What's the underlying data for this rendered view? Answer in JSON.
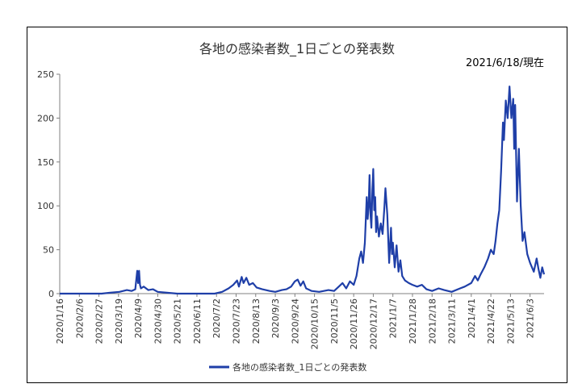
{
  "chart_data": {
    "type": "line",
    "title": "各地の感染者数_1日ごとの発表数",
    "subtitle": "2021/6/18/現在",
    "xlabel": "",
    "ylabel": "",
    "ylim": [
      0,
      250
    ],
    "y_ticks": [
      0,
      50,
      100,
      150,
      200,
      250
    ],
    "x_ticks": [
      "2020/1/16",
      "2020/2/6",
      "2020/2/27",
      "2020/3/19",
      "2020/4/9",
      "2020/4/30",
      "2020/5/21",
      "2020/6/11",
      "2020/7/2",
      "2020/7/23",
      "2020/8/13",
      "2020/9/3",
      "2020/9/24",
      "2020/10/15",
      "2020/11/5",
      "2020/11/26",
      "2020/12/17",
      "2021/1/7",
      "2021/1/28",
      "2021/2/18",
      "2021/3/11",
      "2021/4/1",
      "2021/4/22",
      "2021/5/13",
      "2021/6/3"
    ],
    "grid": false,
    "legend": "bottom",
    "colors": {
      "series": "#1F3FA8"
    },
    "series": [
      {
        "name": "各地の感染者数_1日ごとの発表数",
        "points": [
          [
            "2020/1/16",
            0
          ],
          [
            "2020/3/1",
            0
          ],
          [
            "2020/3/10",
            1
          ],
          [
            "2020/3/20",
            2
          ],
          [
            "2020/3/28",
            4
          ],
          [
            "2020/4/2",
            3
          ],
          [
            "2020/4/6",
            5
          ],
          [
            "2020/4/8",
            26
          ],
          [
            "2020/4/9",
            12
          ],
          [
            "2020/4/10",
            26
          ],
          [
            "2020/4/11",
            10
          ],
          [
            "2020/4/12",
            6
          ],
          [
            "2020/4/15",
            8
          ],
          [
            "2020/4/20",
            4
          ],
          [
            "2020/4/25",
            5
          ],
          [
            "2020/4/30",
            2
          ],
          [
            "2020/5/10",
            1
          ],
          [
            "2020/5/21",
            0
          ],
          [
            "2020/6/30",
            0
          ],
          [
            "2020/7/8",
            2
          ],
          [
            "2020/7/15",
            6
          ],
          [
            "2020/7/20",
            10
          ],
          [
            "2020/7/24",
            15
          ],
          [
            "2020/7/26",
            8
          ],
          [
            "2020/7/29",
            19
          ],
          [
            "2020/7/31",
            12
          ],
          [
            "2020/8/3",
            18
          ],
          [
            "2020/8/6",
            10
          ],
          [
            "2020/8/10",
            12
          ],
          [
            "2020/8/14",
            7
          ],
          [
            "2020/8/20",
            5
          ],
          [
            "2020/8/28",
            3
          ],
          [
            "2020/9/3",
            2
          ],
          [
            "2020/9/10",
            4
          ],
          [
            "2020/9/15",
            5
          ],
          [
            "2020/9/20",
            8
          ],
          [
            "2020/9/24",
            14
          ],
          [
            "2020/9/27",
            16
          ],
          [
            "2020/9/30",
            9
          ],
          [
            "2020/10/3",
            14
          ],
          [
            "2020/10/6",
            6
          ],
          [
            "2020/10/12",
            3
          ],
          [
            "2020/10/20",
            2
          ],
          [
            "2020/10/30",
            4
          ],
          [
            "2020/11/5",
            3
          ],
          [
            "2020/11/10",
            8
          ],
          [
            "2020/11/14",
            12
          ],
          [
            "2020/11/18",
            6
          ],
          [
            "2020/11/22",
            14
          ],
          [
            "2020/11/26",
            10
          ],
          [
            "2020/11/29",
            20
          ],
          [
            "2020/12/2",
            40
          ],
          [
            "2020/12/4",
            48
          ],
          [
            "2020/12/6",
            35
          ],
          [
            "2020/12/8",
            58
          ],
          [
            "2020/12/10",
            110
          ],
          [
            "2020/12/11",
            85
          ],
          [
            "2020/12/12",
            100
          ],
          [
            "2020/12/13",
            135
          ],
          [
            "2020/12/14",
            90
          ],
          [
            "2020/12/15",
            75
          ],
          [
            "2020/12/16",
            118
          ],
          [
            "2020/12/17",
            142
          ],
          [
            "2020/12/18",
            95
          ],
          [
            "2020/12/19",
            110
          ],
          [
            "2020/12/20",
            70
          ],
          [
            "2020/12/21",
            88
          ],
          [
            "2020/12/23",
            65
          ],
          [
            "2020/12/25",
            80
          ],
          [
            "2020/12/27",
            68
          ],
          [
            "2020/12/29",
            100
          ],
          [
            "2020/12/30",
            120
          ],
          [
            "2021/1/1",
            90
          ],
          [
            "2021/1/3",
            35
          ],
          [
            "2021/1/5",
            75
          ],
          [
            "2021/1/6",
            45
          ],
          [
            "2021/1/7",
            58
          ],
          [
            "2021/1/9",
            30
          ],
          [
            "2021/1/11",
            55
          ],
          [
            "2021/1/13",
            25
          ],
          [
            "2021/1/15",
            38
          ],
          [
            "2021/1/17",
            20
          ],
          [
            "2021/1/20",
            15
          ],
          [
            "2021/1/24",
            12
          ],
          [
            "2021/1/28",
            10
          ],
          [
            "2021/2/2",
            8
          ],
          [
            "2021/2/7",
            10
          ],
          [
            "2021/2/12",
            5
          ],
          [
            "2021/2/18",
            3
          ],
          [
            "2021/2/25",
            6
          ],
          [
            "2021/3/3",
            4
          ],
          [
            "2021/3/11",
            2
          ],
          [
            "2021/3/20",
            6
          ],
          [
            "2021/3/25",
            8
          ],
          [
            "2021/4/1",
            12
          ],
          [
            "2021/4/5",
            20
          ],
          [
            "2021/4/8",
            15
          ],
          [
            "2021/4/11",
            22
          ],
          [
            "2021/4/15",
            30
          ],
          [
            "2021/4/19",
            40
          ],
          [
            "2021/4/22",
            50
          ],
          [
            "2021/4/25",
            45
          ],
          [
            "2021/4/27",
            60
          ],
          [
            "2021/4/29",
            80
          ],
          [
            "2021/5/1",
            95
          ],
          [
            "2021/5/3",
            140
          ],
          [
            "2021/5/5",
            195
          ],
          [
            "2021/5/6",
            175
          ],
          [
            "2021/5/8",
            220
          ],
          [
            "2021/5/10",
            200
          ],
          [
            "2021/5/12",
            236
          ],
          [
            "2021/5/14",
            200
          ],
          [
            "2021/5/16",
            222
          ],
          [
            "2021/5/17",
            165
          ],
          [
            "2021/5/18",
            215
          ],
          [
            "2021/5/20",
            105
          ],
          [
            "2021/5/22",
            165
          ],
          [
            "2021/5/24",
            100
          ],
          [
            "2021/5/26",
            60
          ],
          [
            "2021/5/28",
            70
          ],
          [
            "2021/5/31",
            45
          ],
          [
            "2021/6/3",
            35
          ],
          [
            "2021/6/7",
            25
          ],
          [
            "2021/6/10",
            40
          ],
          [
            "2021/6/12",
            28
          ],
          [
            "2021/6/14",
            18
          ],
          [
            "2021/6/16",
            30
          ],
          [
            "2021/6/18",
            22
          ]
        ]
      }
    ]
  }
}
